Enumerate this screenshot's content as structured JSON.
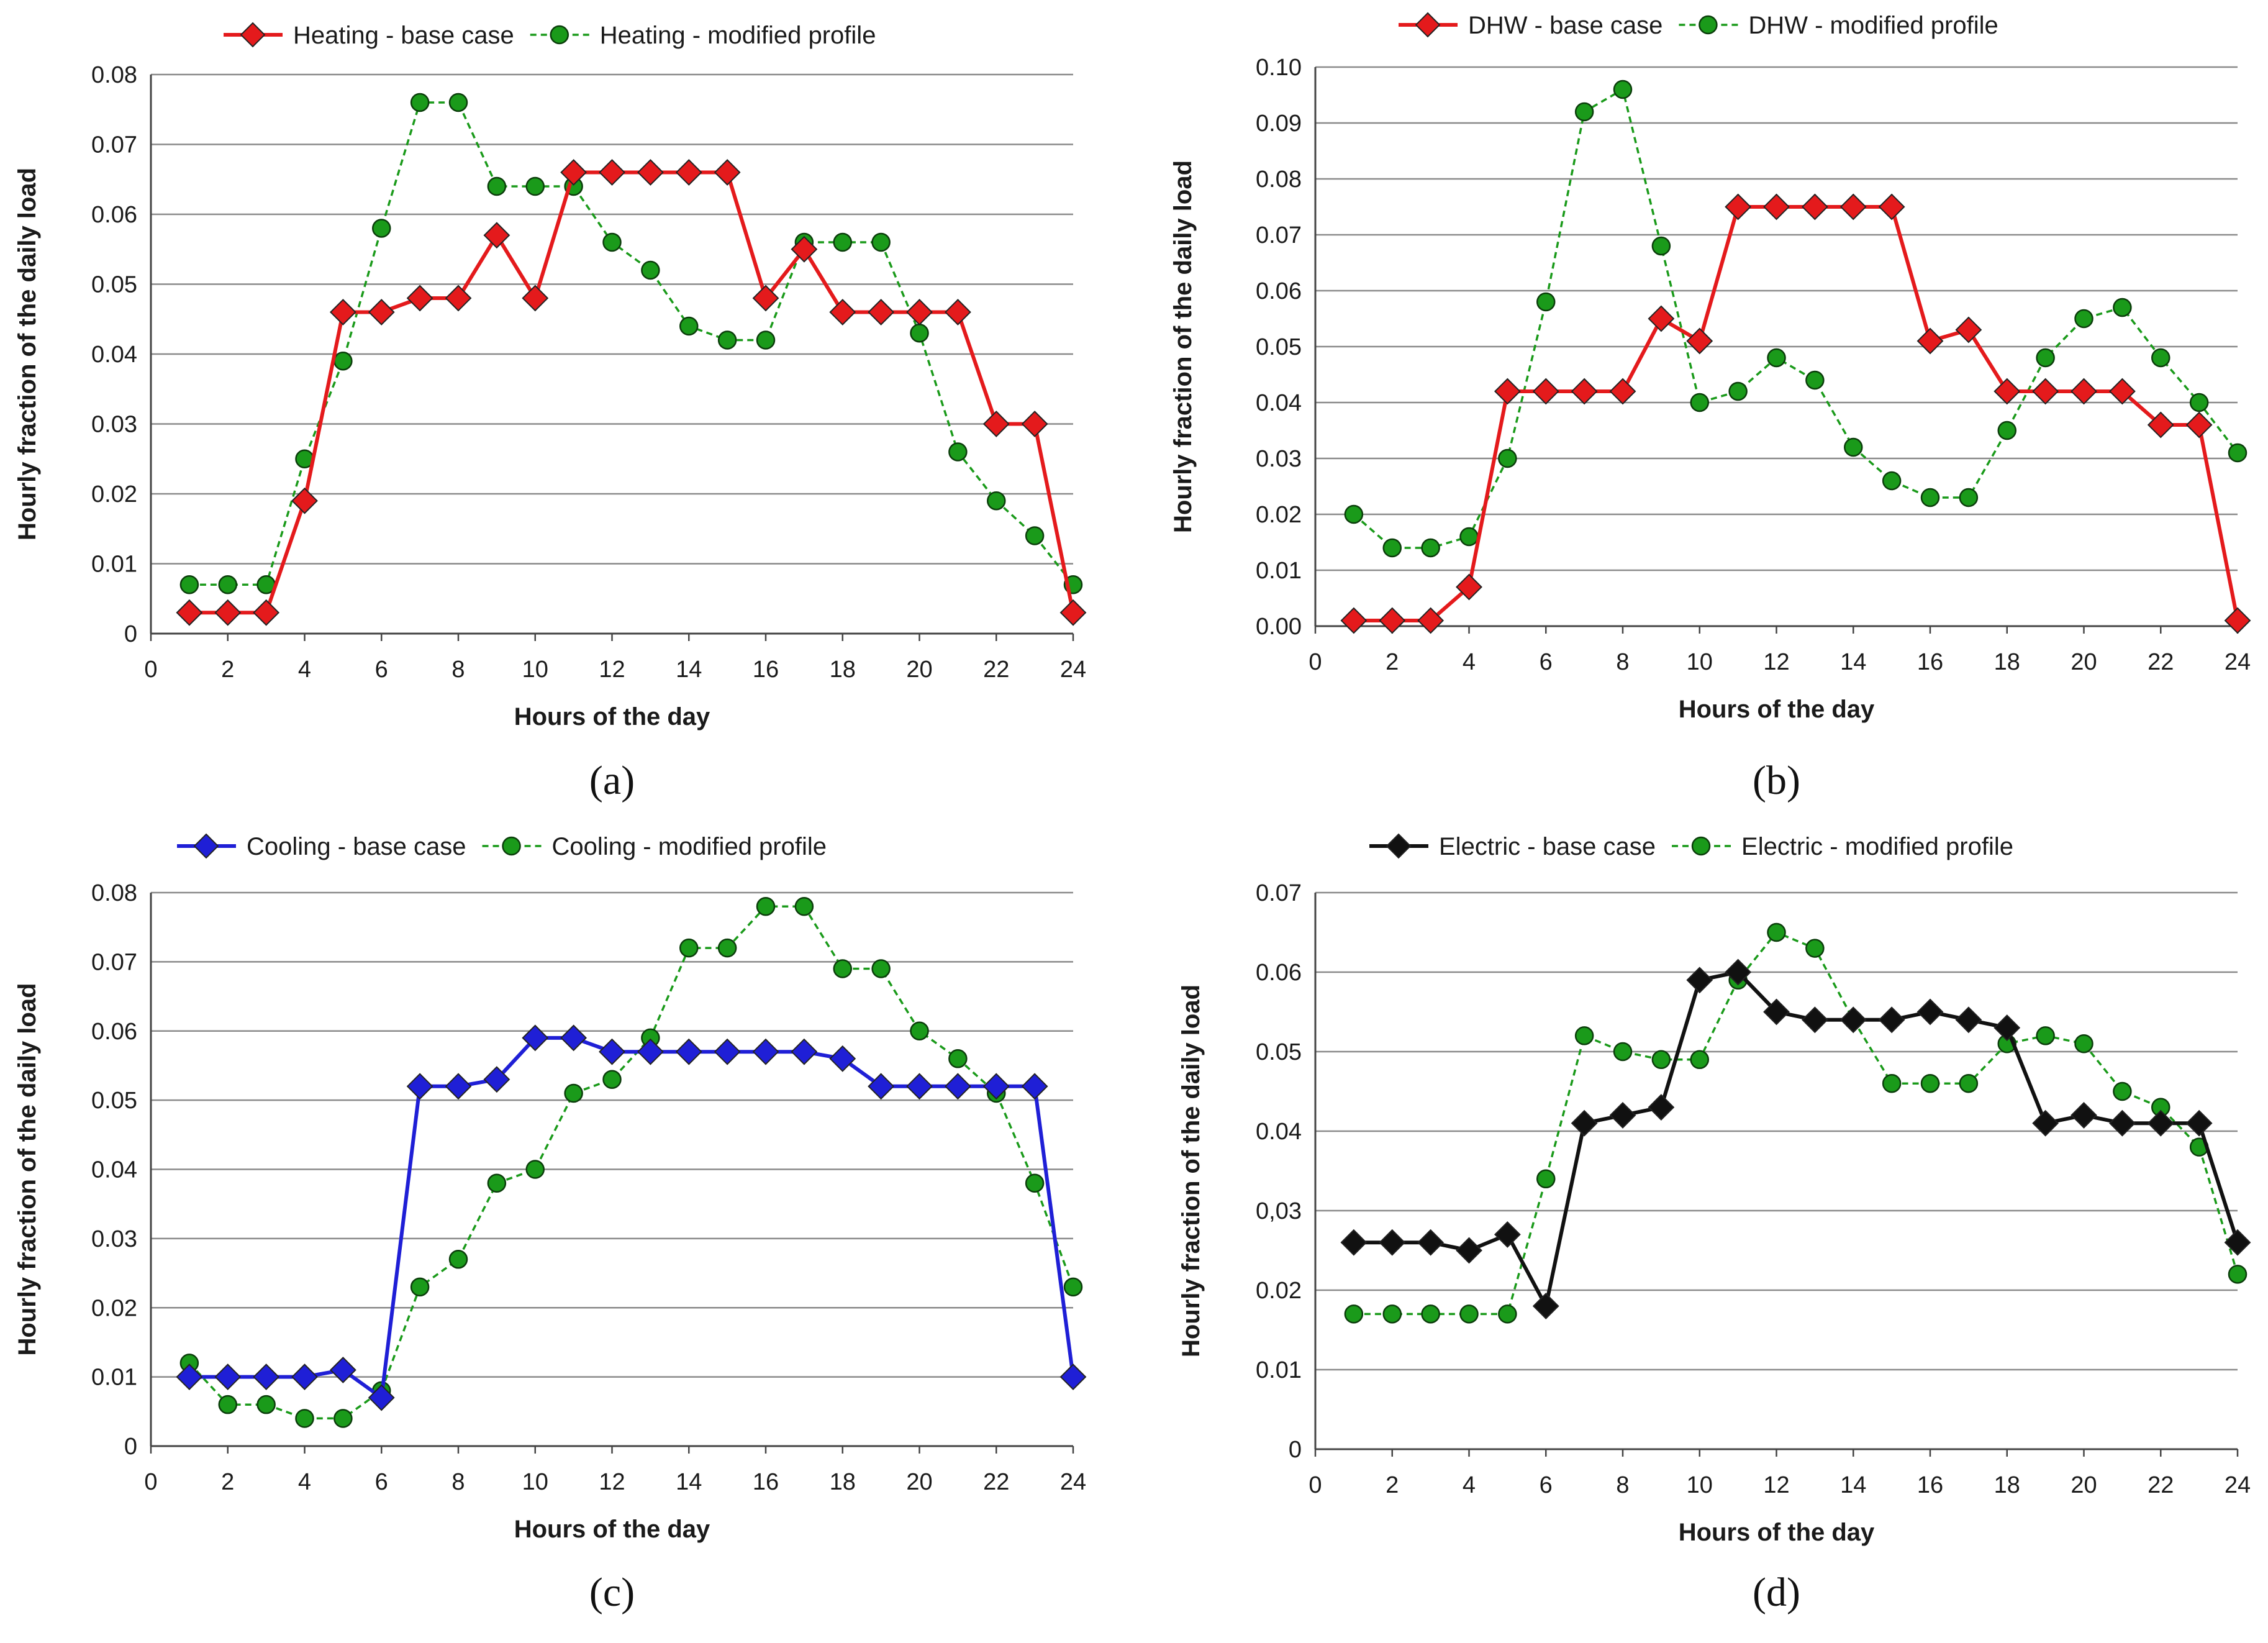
{
  "chart_data": [
    {
      "type": "line",
      "panel_label": "(a)",
      "xlabel": "Hours of the day",
      "ylabel": "Hourly fraction of the daily  load",
      "xlim": [
        0,
        24
      ],
      "ylim": [
        0,
        0.08
      ],
      "xticks": [
        "0",
        "2",
        "4",
        "6",
        "8",
        "10",
        "12",
        "14",
        "16",
        "18",
        "20",
        "22",
        "24"
      ],
      "yticks": [
        "0",
        "0.01",
        "0.02",
        "0.03",
        "0.04",
        "0.05",
        "0.06",
        "0.07",
        "0.08"
      ],
      "grid": "horizontal",
      "legend": "top",
      "x": [
        1,
        2,
        3,
        4,
        5,
        6,
        7,
        8,
        9,
        10,
        11,
        12,
        13,
        14,
        15,
        16,
        17,
        18,
        19,
        20,
        21,
        22,
        23,
        24
      ],
      "series": [
        {
          "name": "Heating - base case",
          "color": "#e41a1c",
          "style": "solid",
          "marker": "diamond",
          "values": [
            0.003,
            0.003,
            0.003,
            0.019,
            0.046,
            0.046,
            0.048,
            0.048,
            0.057,
            0.048,
            0.066,
            0.066,
            0.066,
            0.066,
            0.066,
            0.048,
            0.055,
            0.046,
            0.046,
            0.046,
            0.046,
            0.03,
            0.03,
            0.003
          ]
        },
        {
          "name": "Heating - modified profile",
          "color": "#1a9a1a",
          "style": "dashed",
          "marker": "circle",
          "values": [
            0.007,
            0.007,
            0.007,
            0.025,
            0.039,
            0.058,
            0.076,
            0.076,
            0.064,
            0.064,
            0.064,
            0.056,
            0.052,
            0.044,
            0.042,
            0.042,
            0.056,
            0.056,
            0.056,
            0.043,
            0.026,
            0.019,
            0.014,
            0.007
          ]
        }
      ]
    },
    {
      "type": "line",
      "panel_label": "(b)",
      "xlabel": "Hours of the day",
      "ylabel": "Hourly fraction of the daily  load",
      "xlim": [
        0,
        24
      ],
      "ylim": [
        0,
        0.1
      ],
      "xticks": [
        "0",
        "2",
        "4",
        "6",
        "8",
        "10",
        "12",
        "14",
        "16",
        "18",
        "20",
        "22",
        "24"
      ],
      "yticks": [
        "0.00",
        "0.01",
        "0.02",
        "0.03",
        "0.04",
        "0.05",
        "0.06",
        "0.07",
        "0.08",
        "0.09",
        "0.10"
      ],
      "grid": "horizontal",
      "legend": "top",
      "x": [
        1,
        2,
        3,
        4,
        5,
        6,
        7,
        8,
        9,
        10,
        11,
        12,
        13,
        14,
        15,
        16,
        17,
        18,
        19,
        20,
        21,
        22,
        23,
        24
      ],
      "series": [
        {
          "name": "DHW - base case",
          "color": "#e41a1c",
          "style": "solid",
          "marker": "diamond",
          "values": [
            0.001,
            0.001,
            0.001,
            0.007,
            0.042,
            0.042,
            0.042,
            0.042,
            0.055,
            0.051,
            0.075,
            0.075,
            0.075,
            0.075,
            0.075,
            0.051,
            0.053,
            0.042,
            0.042,
            0.042,
            0.042,
            0.036,
            0.036,
            0.001
          ]
        },
        {
          "name": "DHW - modified profile",
          "color": "#1a9a1a",
          "style": "dashed",
          "marker": "circle",
          "values": [
            0.02,
            0.014,
            0.014,
            0.016,
            0.03,
            0.058,
            0.092,
            0.096,
            0.068,
            0.04,
            0.042,
            0.048,
            0.044,
            0.032,
            0.026,
            0.023,
            0.023,
            0.035,
            0.048,
            0.055,
            0.057,
            0.048,
            0.04,
            0.031
          ]
        }
      ]
    },
    {
      "type": "line",
      "panel_label": "(c)",
      "xlabel": "Hours of the day",
      "ylabel": "Hourly fraction of the daily  load",
      "xlim": [
        0,
        24
      ],
      "ylim": [
        0,
        0.08
      ],
      "xticks": [
        "0",
        "2",
        "4",
        "6",
        "8",
        "10",
        "12",
        "14",
        "16",
        "18",
        "20",
        "22",
        "24"
      ],
      "yticks": [
        "0",
        "0.01",
        "0.02",
        "0.03",
        "0.04",
        "0.05",
        "0.06",
        "0.07",
        "0.08"
      ],
      "grid": "horizontal",
      "legend": "top",
      "x": [
        1,
        2,
        3,
        4,
        5,
        6,
        7,
        8,
        9,
        10,
        11,
        12,
        13,
        14,
        15,
        16,
        17,
        18,
        19,
        20,
        21,
        22,
        23,
        24
      ],
      "series": [
        {
          "name": "Cooling - base case",
          "color": "#1f1fd6",
          "style": "solid",
          "marker": "diamond",
          "values": [
            0.01,
            0.01,
            0.01,
            0.01,
            0.011,
            0.007,
            0.052,
            0.052,
            0.053,
            0.059,
            0.059,
            0.057,
            0.057,
            0.057,
            0.057,
            0.057,
            0.057,
            0.056,
            0.052,
            0.052,
            0.052,
            0.052,
            0.052,
            0.01
          ]
        },
        {
          "name": "Cooling - modified profile",
          "color": "#1a9a1a",
          "style": "dashed",
          "marker": "circle",
          "values": [
            0.012,
            0.006,
            0.006,
            0.004,
            0.004,
            0.008,
            0.023,
            0.027,
            0.038,
            0.04,
            0.051,
            0.053,
            0.059,
            0.072,
            0.072,
            0.078,
            0.078,
            0.069,
            0.069,
            0.06,
            0.056,
            0.051,
            0.038,
            0.023
          ]
        }
      ]
    },
    {
      "type": "line",
      "panel_label": "(d)",
      "xlabel": "Hours of the day",
      "ylabel": "Hourly fraction of the daily  load",
      "xlim": [
        0,
        24
      ],
      "ylim": [
        0,
        0.07
      ],
      "xticks": [
        "0",
        "2",
        "4",
        "6",
        "8",
        "10",
        "12",
        "14",
        "16",
        "18",
        "20",
        "22",
        "24"
      ],
      "yticks": [
        "0",
        "0.01",
        "0.02",
        "0,03",
        "0.04",
        "0.05",
        "0.06",
        "0.07"
      ],
      "grid": "horizontal",
      "legend": "top",
      "x": [
        1,
        2,
        3,
        4,
        5,
        6,
        7,
        8,
        9,
        10,
        11,
        12,
        13,
        14,
        15,
        16,
        17,
        18,
        19,
        20,
        21,
        22,
        23,
        24
      ],
      "series": [
        {
          "name": "Electric - base case",
          "color": "#111111",
          "style": "solid",
          "marker": "diamond",
          "values": [
            0.026,
            0.026,
            0.026,
            0.025,
            0.027,
            0.018,
            0.041,
            0.042,
            0.043,
            0.059,
            0.06,
            0.055,
            0.054,
            0.054,
            0.054,
            0.055,
            0.054,
            0.053,
            0.041,
            0.042,
            0.041,
            0.041,
            0.041,
            0.026
          ]
        },
        {
          "name": "Electric - modified profile",
          "color": "#1a9a1a",
          "style": "dashed",
          "marker": "circle",
          "values": [
            0.017,
            0.017,
            0.017,
            0.017,
            0.017,
            0.034,
            0.052,
            0.05,
            0.049,
            0.049,
            0.059,
            0.065,
            0.063,
            0.054,
            0.046,
            0.046,
            0.046,
            0.051,
            0.052,
            0.051,
            0.045,
            0.043,
            0.038,
            0.022
          ]
        }
      ]
    }
  ]
}
